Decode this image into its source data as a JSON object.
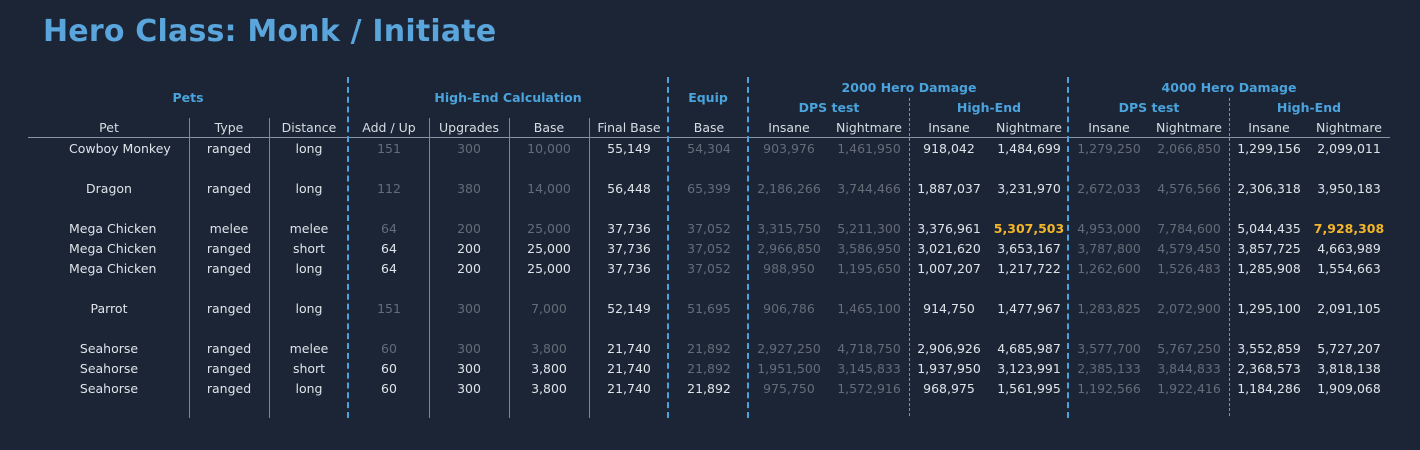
{
  "title": "Hero Class: Monk / Initiate",
  "group_headers": {
    "pets": "Pets",
    "high_end_calc": "High-End Calculation",
    "equip": "Equip",
    "dmg_2000": "2000 Hero Damage",
    "dmg_4000": "4000 Hero Damage",
    "dps_test": "DPS test",
    "high_end": "High-End"
  },
  "columns": [
    "Pet",
    "Type",
    "Distance",
    "Add / Up",
    "Upgrades",
    "Base",
    "Final Base",
    "Base",
    "Insane",
    "Nightmare",
    "Insane",
    "Nightmare",
    "Insane",
    "Nightmare",
    "Insane",
    "Nightmare"
  ],
  "rows": [
    [
      "Cowboy Monkey",
      "ranged",
      "long",
      "151",
      "300",
      "10,000",
      "55,149",
      "54,304",
      "903,976",
      "1,461,950",
      "918,042",
      "1,484,699",
      "1,279,250",
      "2,066,850",
      "1,299,156",
      "2,099,011"
    ],
    [
      "Dragon",
      "ranged",
      "long",
      "112",
      "380",
      "14,000",
      "56,448",
      "65,399",
      "2,186,266",
      "3,744,466",
      "1,887,037",
      "3,231,970",
      "2,672,033",
      "4,576,566",
      "2,306,318",
      "3,950,183"
    ],
    [
      "Mega Chicken",
      "melee",
      "melee",
      "64",
      "200",
      "25,000",
      "37,736",
      "37,052",
      "3,315,750",
      "5,211,300",
      "3,376,961",
      "5,307,503",
      "4,953,000",
      "7,784,600",
      "5,044,435",
      "7,928,308"
    ],
    [
      "Mega Chicken",
      "ranged",
      "short",
      "64",
      "200",
      "25,000",
      "37,736",
      "37,052",
      "2,966,850",
      "3,586,950",
      "3,021,620",
      "3,653,167",
      "3,787,800",
      "4,579,450",
      "3,857,725",
      "4,663,989"
    ],
    [
      "Mega Chicken",
      "ranged",
      "long",
      "64",
      "200",
      "25,000",
      "37,736",
      "37,052",
      "988,950",
      "1,195,650",
      "1,007,207",
      "1,217,722",
      "1,262,600",
      "1,526,483",
      "1,285,908",
      "1,554,663"
    ],
    [
      "Parrot",
      "ranged",
      "long",
      "151",
      "300",
      "7,000",
      "52,149",
      "51,695",
      "906,786",
      "1,465,100",
      "914,750",
      "1,477,967",
      "1,283,825",
      "2,072,900",
      "1,295,100",
      "2,091,105"
    ],
    [
      "Seahorse",
      "ranged",
      "melee",
      "60",
      "300",
      "3,800",
      "21,740",
      "21,892",
      "2,927,250",
      "4,718,750",
      "2,906,926",
      "4,685,987",
      "3,577,700",
      "5,767,250",
      "3,552,859",
      "5,727,207"
    ],
    [
      "Seahorse",
      "ranged",
      "short",
      "60",
      "300",
      "3,800",
      "21,740",
      "21,892",
      "1,951,500",
      "3,145,833",
      "1,937,950",
      "3,123,991",
      "2,385,133",
      "3,844,833",
      "2,368,573",
      "3,818,138"
    ],
    [
      "Seahorse",
      "ranged",
      "long",
      "60",
      "300",
      "3,800",
      "21,740",
      "21,892",
      "975,750",
      "1,572,916",
      "968,975",
      "1,561,995",
      "1,192,566",
      "1,922,416",
      "1,184,286",
      "1,909,068"
    ]
  ],
  "colors": {
    "background": "#1b2535",
    "title": "#5aa6dc",
    "header_accent": "#4aa3dc",
    "text": "#dfe4ea",
    "dim_text": "#646c78",
    "highlight": "#f3b62a"
  }
}
